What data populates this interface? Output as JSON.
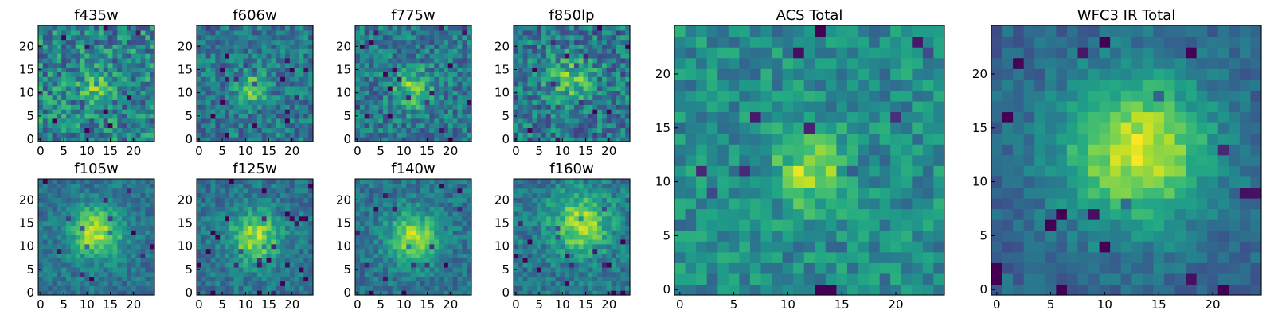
{
  "chart_data": [
    {
      "type": "heatmap",
      "title": "f435w",
      "xlim": [
        0,
        24
      ],
      "ylim": [
        0,
        24
      ],
      "xticks": [
        0,
        5,
        10,
        15,
        20
      ],
      "yticks": [
        0,
        5,
        10,
        15,
        20
      ],
      "center": [
        12,
        11
      ],
      "blob_strength": 0.25,
      "blob_sigma": 2.5,
      "noise": 0.5,
      "base": 0.45,
      "seed": 11,
      "colormap": "viridis"
    },
    {
      "type": "heatmap",
      "title": "f606w",
      "xlim": [
        0,
        24
      ],
      "ylim": [
        0,
        24
      ],
      "xticks": [
        0,
        5,
        10,
        15,
        20
      ],
      "yticks": [
        0,
        5,
        10,
        15,
        20
      ],
      "center": [
        11,
        11
      ],
      "blob_strength": 0.35,
      "blob_sigma": 2.5,
      "noise": 0.38,
      "base": 0.4,
      "seed": 23,
      "colormap": "viridis"
    },
    {
      "type": "heatmap",
      "title": "f775w",
      "xlim": [
        0,
        24
      ],
      "ylim": [
        0,
        24
      ],
      "xticks": [
        0,
        5,
        10,
        15,
        20
      ],
      "yticks": [
        0,
        5,
        10,
        15,
        20
      ],
      "center": [
        12,
        11
      ],
      "blob_strength": 0.35,
      "blob_sigma": 3.0,
      "noise": 0.4,
      "base": 0.4,
      "seed": 37,
      "colormap": "viridis"
    },
    {
      "type": "heatmap",
      "title": "f850lp",
      "xlim": [
        0,
        24
      ],
      "ylim": [
        0,
        24
      ],
      "xticks": [
        0,
        5,
        10,
        15,
        20
      ],
      "yticks": [
        0,
        5,
        10,
        15,
        20
      ],
      "center": [
        12,
        13
      ],
      "blob_strength": 0.3,
      "blob_sigma": 3.5,
      "noise": 0.45,
      "base": 0.4,
      "seed": 41,
      "colormap": "viridis"
    },
    {
      "type": "heatmap",
      "title": "f105w",
      "xlim": [
        0,
        24
      ],
      "ylim": [
        0,
        24
      ],
      "xticks": [
        0,
        5,
        10,
        15,
        20
      ],
      "yticks": [
        0,
        5,
        10,
        15,
        20
      ],
      "center": [
        12,
        13
      ],
      "blob_strength": 0.5,
      "blob_sigma": 4.0,
      "noise": 0.25,
      "base": 0.38,
      "seed": 53,
      "colormap": "viridis"
    },
    {
      "type": "heatmap",
      "title": "f125w",
      "xlim": [
        0,
        24
      ],
      "ylim": [
        0,
        24
      ],
      "xticks": [
        0,
        5,
        10,
        15,
        20
      ],
      "yticks": [
        0,
        5,
        10,
        15,
        20
      ],
      "center": [
        12,
        12
      ],
      "blob_strength": 0.48,
      "blob_sigma": 3.8,
      "noise": 0.27,
      "base": 0.38,
      "seed": 67,
      "colormap": "viridis"
    },
    {
      "type": "heatmap",
      "title": "f140w",
      "xlim": [
        0,
        24
      ],
      "ylim": [
        0,
        24
      ],
      "xticks": [
        0,
        5,
        10,
        15,
        20
      ],
      "yticks": [
        0,
        5,
        10,
        15,
        20
      ],
      "center": [
        12,
        12
      ],
      "blob_strength": 0.5,
      "blob_sigma": 3.8,
      "noise": 0.27,
      "base": 0.38,
      "seed": 79,
      "colormap": "viridis"
    },
    {
      "type": "heatmap",
      "title": "f160w",
      "xlim": [
        0,
        24
      ],
      "ylim": [
        0,
        24
      ],
      "xticks": [
        0,
        5,
        10,
        15,
        20
      ],
      "yticks": [
        0,
        5,
        10,
        15,
        20
      ],
      "center": [
        14,
        15
      ],
      "blob_strength": 0.45,
      "blob_sigma": 4.5,
      "noise": 0.3,
      "base": 0.4,
      "seed": 83,
      "colormap": "viridis"
    },
    {
      "type": "heatmap",
      "title": "ACS Total",
      "xlim": [
        0,
        24
      ],
      "ylim": [
        0,
        24
      ],
      "xticks": [
        0,
        5,
        10,
        15,
        20
      ],
      "yticks": [
        0,
        5,
        10,
        15,
        20
      ],
      "center": [
        12,
        11
      ],
      "blob_strength": 0.4,
      "blob_sigma": 2.2,
      "noise": 0.32,
      "base": 0.48,
      "seed": 97,
      "colormap": "viridis"
    },
    {
      "type": "heatmap",
      "title": "WFC3 IR Total",
      "xlim": [
        0,
        24
      ],
      "ylim": [
        0,
        24
      ],
      "xticks": [
        0,
        5,
        10,
        15,
        20
      ],
      "yticks": [
        0,
        5,
        10,
        15,
        20
      ],
      "center": [
        13,
        13
      ],
      "blob_strength": 0.6,
      "blob_sigma": 5.0,
      "noise": 0.2,
      "base": 0.32,
      "seed": 101,
      "colormap": "viridis"
    }
  ]
}
